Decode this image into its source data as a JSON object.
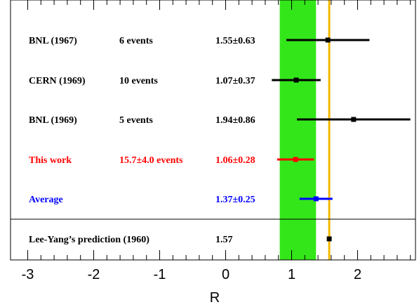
{
  "chart_data": {
    "type": "scatter",
    "xlabel": "R",
    "xlim": [
      -3.3,
      2.9
    ],
    "x_ticks": [
      {
        "value": -3,
        "label": "-3"
      },
      {
        "value": -2,
        "label": "-2"
      },
      {
        "value": -1,
        "label": "-1"
      },
      {
        "value": 0,
        "label": "0"
      },
      {
        "value": 1,
        "label": "1"
      },
      {
        "value": 2,
        "label": "2"
      }
    ],
    "band": {
      "low": 0.82,
      "high": 1.37,
      "color": "#33e61a"
    },
    "reference_line": {
      "value": 1.57,
      "color": "#f5b800"
    },
    "rows": [
      {
        "experiment": "BNL (1967)",
        "events": "6 events",
        "result": "1.55±0.63",
        "value": 1.55,
        "error": 0.63,
        "color": "#000000"
      },
      {
        "experiment": "CERN (1969)",
        "events": "10 events",
        "result": "1.07±0.37",
        "value": 1.07,
        "error": 0.37,
        "color": "#000000"
      },
      {
        "experiment": "BNL (1969)",
        "events": "5 events",
        "result": "1.94±0.86",
        "value": 1.94,
        "error": 0.86,
        "color": "#000000"
      },
      {
        "experiment": "This work",
        "events": "15.7±4.0 events",
        "result": "1.06±0.28",
        "value": 1.06,
        "error": 0.28,
        "color": "#ff0000"
      },
      {
        "experiment": "Average",
        "events": "",
        "result": "1.37±0.25",
        "value": 1.37,
        "error": 0.25,
        "color": "#0000ff"
      }
    ],
    "prediction": {
      "label": "Lee-Yang’s prediction (1960)",
      "result": "1.57",
      "value": 1.57
    }
  }
}
